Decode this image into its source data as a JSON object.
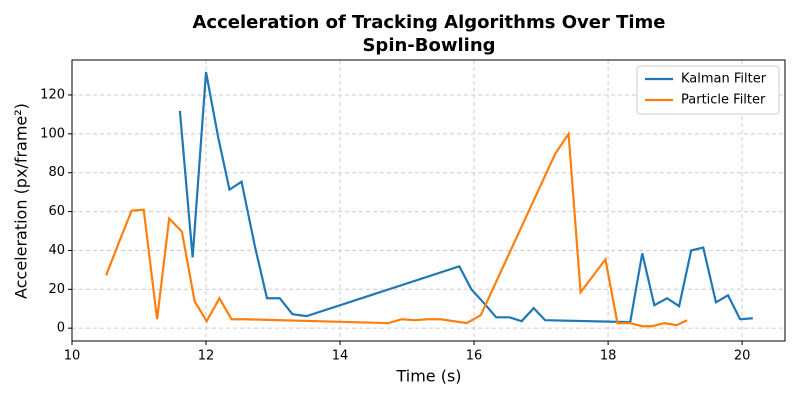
{
  "chart_data": {
    "type": "line",
    "title": "Acceleration of Tracking Algorithms Over Time",
    "subtitle": "Spin-Bowling",
    "x_label": "Time (s)",
    "y_label": "Acceleration (px/frame²)",
    "xlim": [
      10,
      20.64
    ],
    "ylim": [
      -6.6,
      138
    ],
    "xticks": [
      10,
      12,
      14,
      16,
      18,
      20
    ],
    "yticks": [
      0,
      20,
      40,
      60,
      80,
      100,
      120
    ],
    "grid": true,
    "legend": "upper right",
    "series": [
      {
        "name": "Kalman Filter",
        "color": "#1f77b4",
        "x": [
          11.61,
          11.8,
          12.0,
          12.18,
          12.35,
          12.53,
          12.73,
          12.91,
          13.1,
          13.29,
          13.5,
          15.78,
          15.96,
          16.15,
          16.33,
          16.53,
          16.71,
          16.89,
          17.06,
          18.33,
          18.51,
          18.69,
          18.88,
          19.06,
          19.24,
          19.42,
          19.61,
          19.79,
          19.97,
          20.16
        ],
        "values": [
          111.8,
          36.4,
          131.8,
          98.5,
          71.3,
          75.4,
          42,
          15.4,
          15.4,
          7.2,
          6.2,
          31.8,
          20,
          12.8,
          5.6,
          5.6,
          3.6,
          10.3,
          4.1,
          3.1,
          38.5,
          11.8,
          15.4,
          11.3,
          40,
          41.5,
          13.3,
          16.9,
          4.6,
          5.1
        ]
      },
      {
        "name": "Particle Filter",
        "color": "#ff7f0e",
        "x": [
          10.51,
          10.7,
          10.89,
          11.07,
          11.27,
          11.45,
          11.64,
          11.83,
          12.01,
          12.2,
          12.38,
          12.58,
          14.72,
          14.92,
          15.11,
          15.31,
          15.5,
          15.89,
          16.1,
          17.21,
          17.41,
          17.59,
          17.76,
          17.96,
          18.14,
          18.33,
          18.51,
          18.66,
          18.84,
          19.02,
          19.18
        ],
        "values": [
          27.2,
          44.1,
          60.5,
          61,
          4.6,
          56.4,
          49.7,
          13.8,
          3.6,
          15.4,
          4.6,
          4.6,
          2.6,
          4.6,
          4.1,
          4.6,
          4.6,
          2.6,
          6.7,
          89.7,
          100,
          18.5,
          26.2,
          35.4,
          2.6,
          2.6,
          1,
          1,
          2.6,
          1.5,
          4.1
        ]
      }
    ]
  }
}
